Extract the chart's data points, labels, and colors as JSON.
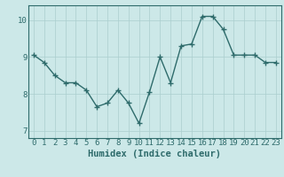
{
  "x": [
    0,
    1,
    2,
    3,
    4,
    5,
    6,
    7,
    8,
    9,
    10,
    11,
    12,
    13,
    14,
    15,
    16,
    17,
    18,
    19,
    20,
    21,
    22,
    23
  ],
  "y": [
    9.05,
    8.85,
    8.5,
    8.3,
    8.3,
    8.1,
    7.65,
    7.75,
    8.1,
    7.75,
    7.2,
    8.05,
    9.0,
    8.3,
    9.3,
    9.35,
    10.1,
    10.1,
    9.75,
    9.05,
    9.05,
    9.05,
    8.85,
    8.85
  ],
  "line_color": "#2e6b6b",
  "marker": "+",
  "marker_size": 4,
  "bg_color": "#cce8e8",
  "grid_color": "#aacece",
  "xlabel": "Humidex (Indice chaleur)",
  "ylim": [
    6.8,
    10.4
  ],
  "yticks": [
    7,
    8,
    9,
    10
  ],
  "xticks": [
    0,
    1,
    2,
    3,
    4,
    5,
    6,
    7,
    8,
    9,
    10,
    11,
    12,
    13,
    14,
    15,
    16,
    17,
    18,
    19,
    20,
    21,
    22,
    23
  ],
  "tick_fontsize": 6.5,
  "label_fontsize": 7.5,
  "line_width": 1.0
}
